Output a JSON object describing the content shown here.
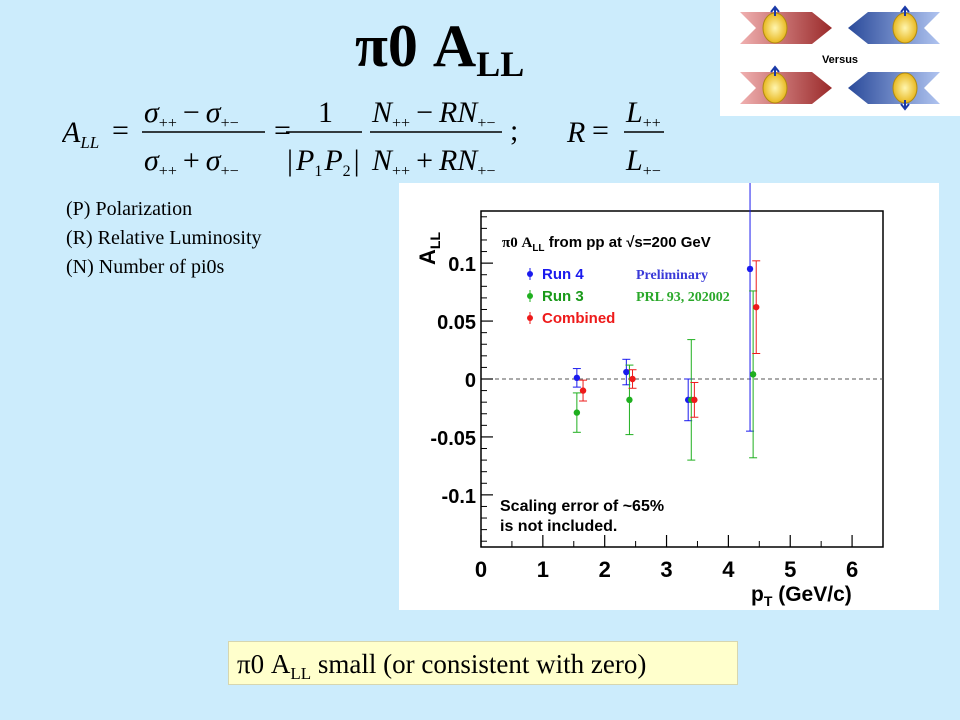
{
  "slide": {
    "title_main": "π0 A",
    "title_sub": "LL",
    "notes": [
      "(P) Polarization",
      "(R) Relative Luminosity",
      "(N) Number of pi0s"
    ],
    "conclusion_main": "π0 A",
    "conclusion_sub": "LL",
    "conclusion_rest": " small (or consistent with zero)",
    "versus_label": "Versus"
  },
  "formula": {
    "lhs": "A",
    "lhs_sub": "LL",
    "sigma": "σ",
    "pp": "++",
    "pm": "+−",
    "one": "1",
    "p1": "P",
    "p1_sub": "1",
    "p2": "P",
    "p2_sub": "2",
    "n": "N",
    "rn": "RN",
    "r": "R",
    "l": "L",
    "eq": "=",
    "minus": "−",
    "plus": "+",
    "semicolon": ";"
  },
  "chart_data": {
    "type": "scatter",
    "title": "π0 A",
    "title_sub": "LL",
    "title_tail": " from pp at ",
    "title_sqrt": "√s",
    "title_energy": "=200 GeV",
    "ylabel": "A",
    "ylabel_sub": "LL",
    "xlabel_main": "p",
    "xlabel_sub": "T",
    "xlabel_unit": " (GeV/c)",
    "xlim": [
      0,
      6.5
    ],
    "ylim": [
      -0.145,
      0.145
    ],
    "x_ticks": [
      0,
      1,
      2,
      3,
      4,
      5,
      6
    ],
    "x_tick_labels": [
      "0",
      "1",
      "2",
      "3",
      "4",
      "5",
      "6"
    ],
    "y_ticks": [
      -0.1,
      -0.05,
      0,
      0.05,
      0.1
    ],
    "y_tick_labels": [
      "-0.1",
      "-0.05",
      "0",
      "0.05",
      "0.1"
    ],
    "zero_line": true,
    "legend_position": "top-left",
    "series": [
      {
        "name": "Run 4",
        "color": "#1a1aee",
        "note": "Preliminary",
        "points": [
          {
            "x": 1.55,
            "y": 0.001,
            "err": 0.008
          },
          {
            "x": 2.35,
            "y": 0.006,
            "err": 0.011
          },
          {
            "x": 3.35,
            "y": -0.018,
            "err": 0.018
          },
          {
            "x": 4.35,
            "y": 0.095,
            "err": 0.14
          }
        ]
      },
      {
        "name": "Run 3",
        "color": "#1faf1f",
        "note": "PRL 93, 202002",
        "points": [
          {
            "x": 1.55,
            "y": -0.029,
            "err": 0.017
          },
          {
            "x": 2.4,
            "y": -0.018,
            "err": 0.03
          },
          {
            "x": 3.4,
            "y": -0.018,
            "err": 0.052
          },
          {
            "x": 4.4,
            "y": 0.004,
            "err": 0.072
          }
        ]
      },
      {
        "name": "Combined",
        "color": "#ee1a1a",
        "points": [
          {
            "x": 1.65,
            "y": -0.01,
            "err": 0.009
          },
          {
            "x": 2.45,
            "y": 0.0,
            "err": 0.008
          },
          {
            "x": 3.45,
            "y": -0.018,
            "err": 0.015
          },
          {
            "x": 4.45,
            "y": 0.062,
            "err": 0.04
          }
        ]
      }
    ],
    "annotation_lines": [
      "Scaling error of ~65%",
      "is not included."
    ]
  },
  "colors": {
    "background": "#ccecfc",
    "conclusion_bg": "#ffffcc",
    "note_blue": "#3a3ad8",
    "note_green": "#2aa82a",
    "arrow_red": "#a83232",
    "arrow_blue": "#3a5aa8"
  }
}
